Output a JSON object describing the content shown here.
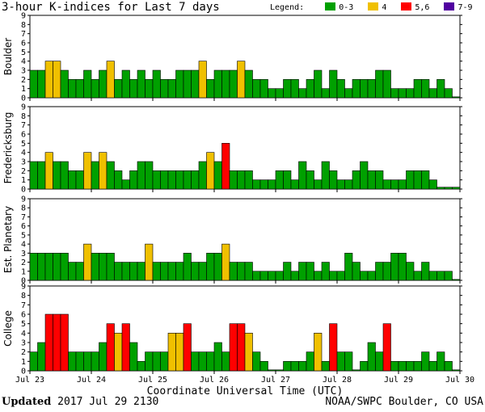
{
  "header": {
    "title": "3-hour K-indices for Last 7 days",
    "legend_label": "Legend:",
    "legend": [
      {
        "label": "0-3",
        "color": "#00a000"
      },
      {
        "label": "4",
        "color": "#f0c000"
      },
      {
        "label": "5,6",
        "color": "#ff0000"
      },
      {
        "label": "7-9",
        "color": "#5000a0"
      }
    ]
  },
  "footer": {
    "updated_label": "Updated",
    "updated_time": "2017 Jul 29 2130",
    "source": "NOAA/SWPC Boulder, CO USA"
  },
  "chart_data": {
    "type": "bar",
    "title": "3-hour K-indices for Last 7 days",
    "xlabel": "Coordinate Universal Time (UTC)",
    "x_ticks": [
      "Jul 23",
      "Jul 24",
      "Jul 25",
      "Jul 26",
      "Jul 27",
      "Jul 28",
      "Jul 29",
      "Jul 30"
    ],
    "ylim": [
      0,
      9
    ],
    "y_ticks": [
      0,
      1,
      2,
      3,
      4,
      5,
      6,
      7,
      8,
      9
    ],
    "grid": false,
    "bars_per_day": 8,
    "color_scale": {
      "0-3": "#00a000",
      "4": "#f0c000",
      "5,6": "#ff0000",
      "7-9": "#5000a0"
    },
    "series": [
      {
        "name": "Boulder",
        "values": [
          3,
          3,
          4,
          4,
          3,
          2,
          2,
          3,
          2,
          3,
          4,
          2,
          3,
          2,
          3,
          2,
          3,
          2,
          2,
          3,
          3,
          3,
          4,
          2,
          3,
          3,
          3,
          4,
          3,
          2,
          2,
          1,
          1,
          2,
          2,
          1,
          2,
          3,
          1,
          3,
          2,
          1,
          2,
          2,
          2,
          3,
          3,
          1,
          1,
          1,
          2,
          2,
          1,
          2,
          1,
          0.1
        ]
      },
      {
        "name": "Fredericksburg",
        "values": [
          3,
          3,
          4,
          3,
          3,
          2,
          2,
          4,
          3,
          4,
          3,
          2,
          1,
          2,
          3,
          3,
          2,
          2,
          2,
          2,
          2,
          2,
          3,
          4,
          3,
          5,
          2,
          2,
          2,
          1,
          1,
          1,
          2,
          2,
          1,
          3,
          2,
          1,
          3,
          2,
          1,
          1,
          2,
          3,
          2,
          2,
          1,
          1,
          1,
          2,
          2,
          2,
          1,
          0.2,
          0.2,
          0.2
        ]
      },
      {
        "name": "Est. Planetary",
        "values": [
          3,
          3,
          3,
          3,
          3,
          2,
          2,
          4,
          3,
          3,
          3,
          2,
          2,
          2,
          2,
          4,
          2,
          2,
          2,
          2,
          3,
          2,
          2,
          3,
          3,
          4,
          2,
          2,
          2,
          1,
          1,
          1,
          1,
          2,
          1,
          2,
          2,
          1,
          2,
          1,
          1,
          3,
          2,
          1,
          1,
          2,
          2,
          3,
          3,
          2,
          1,
          2,
          1,
          1,
          1,
          0.1
        ]
      },
      {
        "name": "College",
        "values": [
          2,
          3,
          6,
          6,
          6,
          2,
          2,
          2,
          2,
          3,
          5,
          4,
          5,
          3,
          1,
          2,
          2,
          2,
          4,
          4,
          5,
          2,
          2,
          2,
          3,
          2,
          5,
          5,
          4,
          2,
          1,
          0.1,
          0.1,
          1,
          1,
          1,
          2,
          4,
          1,
          5,
          2,
          2,
          0.1,
          1,
          3,
          2,
          5,
          1,
          1,
          1,
          1,
          2,
          1,
          2,
          1,
          0.1
        ]
      }
    ]
  }
}
